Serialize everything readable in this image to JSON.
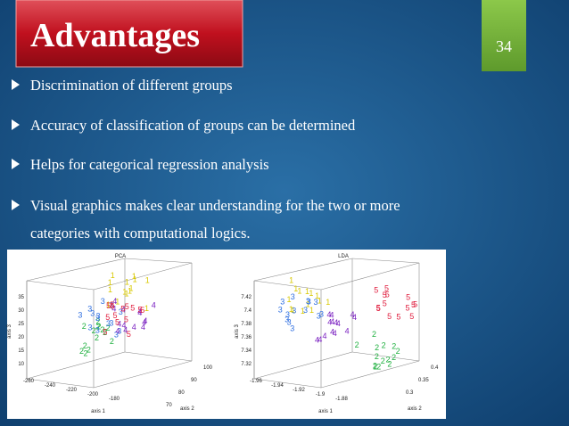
{
  "title": "Advantages",
  "slide_number": "34",
  "bullets": [
    "Discrimination of different groups",
    "Accuracy of classification of groups can be determined",
    "Helps for categorical regression analysis",
    "Visual graphics makes clear understanding for the two or more",
    "categories with computational logics."
  ],
  "figure": {
    "group_labels": [
      "1",
      "2",
      "3",
      "4",
      "5"
    ],
    "panels": [
      {
        "title": "PCA",
        "x_label": "axis 1",
        "y_label": "axis 2",
        "z_label": "axis 3",
        "z_ticks": [
          "35",
          "30",
          "25",
          "20",
          "15",
          "10"
        ],
        "x_ticks": [
          "-260",
          "-240",
          "-220",
          "-200",
          "-180"
        ],
        "y_ticks": [
          "100",
          "90",
          "80",
          "70"
        ]
      },
      {
        "title": "LDA",
        "x_label": "axis 1",
        "y_label": "axis 2",
        "z_label": "axis 3",
        "z_ticks": [
          "7.42",
          "7.4",
          "7.38",
          "7.36",
          "7.34",
          "7.32"
        ],
        "x_ticks": [
          "-1.96",
          "-1.94",
          "-1.92",
          "-1.9",
          "-1.88"
        ],
        "y_ticks": [
          "0.4",
          "0.35",
          "0.3"
        ]
      }
    ]
  }
}
